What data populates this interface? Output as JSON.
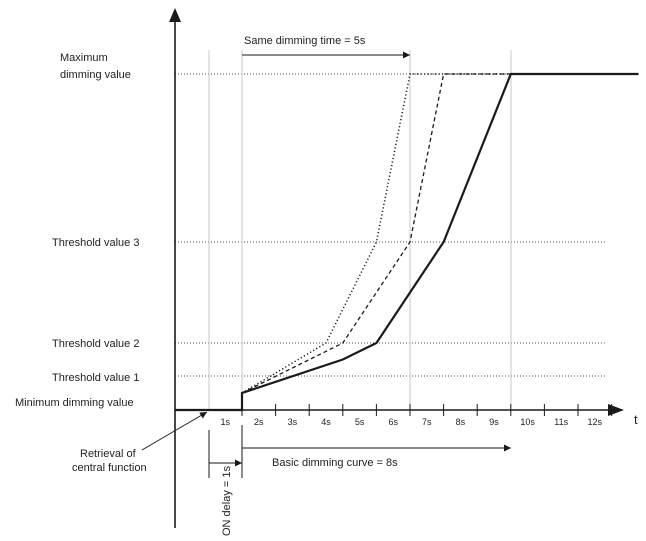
{
  "colors": {
    "line": "#1a1a1a",
    "grid": "#c8c8c8",
    "text": "#222222",
    "background": "#ffffff"
  },
  "labels": {
    "max_value": [
      "Maximum",
      "dimming value"
    ],
    "threshold_3": "Threshold value 3",
    "threshold_2": "Threshold value 2",
    "threshold_1": "Threshold value 1",
    "min_value": "Minimum dimming value",
    "same_dimming_time": "Same dimming time = 5s",
    "retrieval": [
      "Retrieval of",
      "central function"
    ],
    "on_delay": "ON delay = 1s",
    "basic_curve": "Basic dimming curve = 8s",
    "t_axis": "t"
  },
  "chart_data": {
    "type": "line",
    "x_unit": "s",
    "xlim": [
      -1,
      13
    ],
    "ticks": [
      "1s",
      "2s",
      "3s",
      "4s",
      "5s",
      "6s",
      "7s",
      "8s",
      "9s",
      "10s",
      "11s",
      "12s"
    ],
    "levels": [
      "Minimum dimming value",
      "Threshold value 1",
      "Threshold value 2",
      "Threshold value 3",
      "Maximum dimming value"
    ],
    "series": [
      {
        "style": "solid",
        "x": [
          -1,
          1,
          1,
          4,
          5,
          7,
          9,
          12.8
        ],
        "y": [
          0,
          0,
          0.5,
          1.5,
          2,
          3,
          4,
          4
        ]
      },
      {
        "style": "dashed",
        "x": [
          1,
          4,
          6,
          7,
          12.8
        ],
        "y": [
          0.5,
          2,
          3,
          4,
          4
        ]
      },
      {
        "style": "dotted",
        "x": [
          1,
          3.5,
          5,
          6,
          12.8
        ],
        "y": [
          0.5,
          2,
          3,
          4,
          4
        ]
      }
    ]
  }
}
